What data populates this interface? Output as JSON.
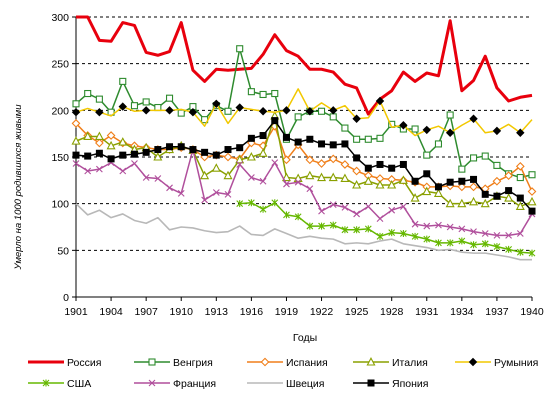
{
  "chart_data": {
    "type": "line",
    "xlabel": "Годы",
    "ylabel": "Умерло на 1000 родившихся живыми",
    "xlim": [
      1901,
      1940
    ],
    "ylim": [
      0,
      300
    ],
    "x_ticks": [
      1901,
      1904,
      1907,
      1910,
      1913,
      1916,
      1919,
      1922,
      1925,
      1928,
      1931,
      1934,
      1937,
      1940
    ],
    "y_ticks": [
      0,
      50,
      100,
      150,
      200,
      250,
      300
    ],
    "grid": "horizontal dashed",
    "legend_position": "bottom",
    "series": [
      {
        "name": "Россия",
        "color": "#e8000d",
        "marker": "none",
        "x": [
          1901,
          1902,
          1903,
          1904,
          1905,
          1906,
          1907,
          1908,
          1909,
          1910,
          1911,
          1912,
          1913,
          1914,
          1915,
          1916,
          1917,
          1918,
          1919,
          1920,
          1921,
          1922,
          1923,
          1924,
          1925,
          1926,
          1927,
          1928,
          1929,
          1930,
          1931,
          1932,
          1933,
          1934,
          1935,
          1936,
          1937,
          1938,
          1939,
          1940
        ],
        "values": [
          300,
          300,
          275,
          274,
          294,
          291,
          262,
          259,
          263,
          294,
          243,
          231,
          244,
          243,
          244,
          245,
          260,
          281,
          264,
          258,
          244,
          244,
          241,
          228,
          224,
          196,
          212,
          221,
          241,
          231,
          240,
          237,
          296,
          221,
          232,
          258,
          224,
          210,
          214,
          216
        ]
      },
      {
        "name": "Венгрия",
        "color": "#2e8b2e",
        "marker": "square",
        "x": [
          1901,
          1902,
          1903,
          1904,
          1905,
          1906,
          1907,
          1908,
          1909,
          1910,
          1911,
          1912,
          1913,
          1914,
          1915,
          1916,
          1917,
          1918,
          1919,
          1920,
          1921,
          1922,
          1923,
          1924,
          1925,
          1926,
          1927,
          1928,
          1929,
          1930,
          1931,
          1932,
          1933,
          1934,
          1935,
          1936,
          1937,
          1938,
          1939,
          1940
        ],
        "values": [
          207,
          218,
          212,
          198,
          231,
          205,
          209,
          203,
          213,
          197,
          204,
          190,
          205,
          199,
          266,
          220,
          217,
          218,
          169,
          193,
          199,
          199,
          193,
          181,
          169,
          169,
          170,
          185,
          180,
          180,
          152,
          164,
          195,
          137,
          149,
          151,
          141,
          132,
          128,
          131
        ]
      },
      {
        "name": "Испания",
        "color": "#f07f1a",
        "marker": "diamond",
        "x": [
          1901,
          1902,
          1903,
          1904,
          1905,
          1906,
          1907,
          1908,
          1909,
          1910,
          1911,
          1912,
          1913,
          1914,
          1915,
          1916,
          1917,
          1918,
          1919,
          1920,
          1921,
          1922,
          1923,
          1924,
          1925,
          1926,
          1927,
          1928,
          1929,
          1930,
          1931,
          1932,
          1933,
          1934,
          1935,
          1936,
          1937,
          1938,
          1939,
          1940
        ],
        "values": [
          186,
          173,
          165,
          173,
          165,
          162,
          160,
          158,
          158,
          160,
          158,
          150,
          152,
          150,
          148,
          165,
          162,
          183,
          147,
          163,
          147,
          143,
          148,
          142,
          135,
          130,
          127,
          126,
          125,
          123,
          118,
          118,
          119,
          118,
          118,
          116,
          124,
          130,
          140,
          113
        ]
      },
      {
        "name": "Италия",
        "color": "#8aa000",
        "marker": "triangle",
        "x": [
          1901,
          1902,
          1903,
          1904,
          1905,
          1906,
          1907,
          1908,
          1909,
          1910,
          1911,
          1912,
          1913,
          1914,
          1915,
          1916,
          1917,
          1918,
          1919,
          1920,
          1921,
          1922,
          1923,
          1924,
          1925,
          1926,
          1927,
          1928,
          1929,
          1930,
          1931,
          1932,
          1933,
          1934,
          1935,
          1936,
          1937,
          1938,
          1939,
          1940
        ],
        "values": [
          167,
          172,
          172,
          162,
          166,
          158,
          160,
          150,
          158,
          162,
          157,
          130,
          138,
          130,
          147,
          150,
          154,
          194,
          128,
          127,
          130,
          128,
          128,
          127,
          120,
          124,
          120,
          120,
          125,
          106,
          113,
          111,
          100,
          100,
          102,
          100,
          108,
          106,
          97,
          102
        ]
      },
      {
        "name": "Румыния",
        "color": "#f2c800",
        "marker": "none",
        "x": [
          1901,
          1902,
          1903,
          1904,
          1905,
          1906,
          1907,
          1908,
          1909,
          1910,
          1911,
          1912,
          1913,
          1914,
          1915,
          1916,
          1917,
          1918,
          1919,
          1920,
          1921,
          1922,
          1923,
          1924,
          1925,
          1926,
          1927,
          1928,
          1929,
          1930,
          1931,
          1932,
          1933,
          1934,
          1935,
          1936,
          1937,
          1938,
          1939,
          1940
        ],
        "values": [
          198,
          202,
          198,
          194,
          204,
          199,
          200,
          200,
          200,
          201,
          198,
          183,
          207,
          186,
          203,
          201,
          199,
          198,
          200,
          223,
          199,
          208,
          200,
          205,
          191,
          192,
          210,
          182,
          184,
          173,
          179,
          183,
          176,
          184,
          191,
          176,
          178,
          185,
          176,
          190
        ]
      },
      {
        "name": "США",
        "color": "#66b800",
        "marker": "star",
        "x": [
          1915,
          1916,
          1917,
          1918,
          1919,
          1920,
          1921,
          1922,
          1923,
          1924,
          1925,
          1926,
          1927,
          1928,
          1929,
          1930,
          1931,
          1932,
          1933,
          1934,
          1935,
          1936,
          1937,
          1938,
          1939,
          1940
        ],
        "values": [
          100,
          101,
          94,
          101,
          88,
          86,
          76,
          76,
          77,
          72,
          72,
          73,
          65,
          69,
          68,
          65,
          62,
          58,
          58,
          60,
          56,
          57,
          54,
          51,
          48,
          47
        ]
      },
      {
        "name": "Франция",
        "color": "#b04f9c",
        "marker": "x",
        "x": [
          1901,
          1902,
          1903,
          1904,
          1905,
          1906,
          1907,
          1908,
          1909,
          1910,
          1911,
          1912,
          1913,
          1914,
          1915,
          1916,
          1917,
          1918,
          1919,
          1920,
          1921,
          1922,
          1923,
          1924,
          1925,
          1926,
          1927,
          1928,
          1929,
          1930,
          1931,
          1932,
          1933,
          1934,
          1935,
          1936,
          1937,
          1938,
          1939,
          1940
        ],
        "values": [
          143,
          135,
          137,
          144,
          135,
          143,
          128,
          127,
          117,
          111,
          158,
          104,
          112,
          110,
          142,
          128,
          124,
          144,
          121,
          123,
          116,
          92,
          99,
          96,
          89,
          97,
          84,
          93,
          97,
          78,
          76,
          77,
          75,
          73,
          70,
          68,
          66,
          66,
          68,
          89
        ]
      },
      {
        "name": "Швеция",
        "color": "#b8b8b8",
        "marker": "none",
        "x": [
          1901,
          1902,
          1903,
          1904,
          1905,
          1906,
          1907,
          1908,
          1909,
          1910,
          1911,
          1912,
          1913,
          1914,
          1915,
          1916,
          1917,
          1918,
          1919,
          1920,
          1921,
          1922,
          1923,
          1924,
          1925,
          1926,
          1927,
          1928,
          1929,
          1930,
          1931,
          1932,
          1933,
          1934,
          1935,
          1936,
          1937,
          1938,
          1939,
          1940
        ],
        "values": [
          100,
          88,
          93,
          85,
          89,
          82,
          79,
          85,
          72,
          75,
          74,
          71,
          69,
          70,
          76,
          67,
          66,
          73,
          68,
          63,
          65,
          63,
          62,
          57,
          58,
          57,
          60,
          62,
          57,
          55,
          53,
          50,
          51,
          48,
          47,
          47,
          45,
          43,
          40,
          40
        ]
      },
      {
        "name": "Япония",
        "color": "#000000",
        "marker": "square-filled",
        "x": [
          1901,
          1902,
          1903,
          1904,
          1905,
          1906,
          1907,
          1908,
          1909,
          1910,
          1911,
          1912,
          1913,
          1914,
          1915,
          1916,
          1917,
          1918,
          1919,
          1920,
          1921,
          1922,
          1923,
          1924,
          1925,
          1926,
          1927,
          1928,
          1929,
          1930,
          1931,
          1932,
          1933,
          1934,
          1935,
          1936,
          1937,
          1938,
          1939,
          1940
        ],
        "values": [
          152,
          151,
          154,
          148,
          152,
          153,
          155,
          158,
          161,
          161,
          158,
          155,
          152,
          158,
          160,
          170,
          173,
          189,
          171,
          166,
          169,
          164,
          163,
          164,
          149,
          138,
          142,
          138,
          142,
          124,
          132,
          118,
          123,
          124,
          126,
          110,
          108,
          114,
          106,
          92
        ]
      }
    ]
  }
}
